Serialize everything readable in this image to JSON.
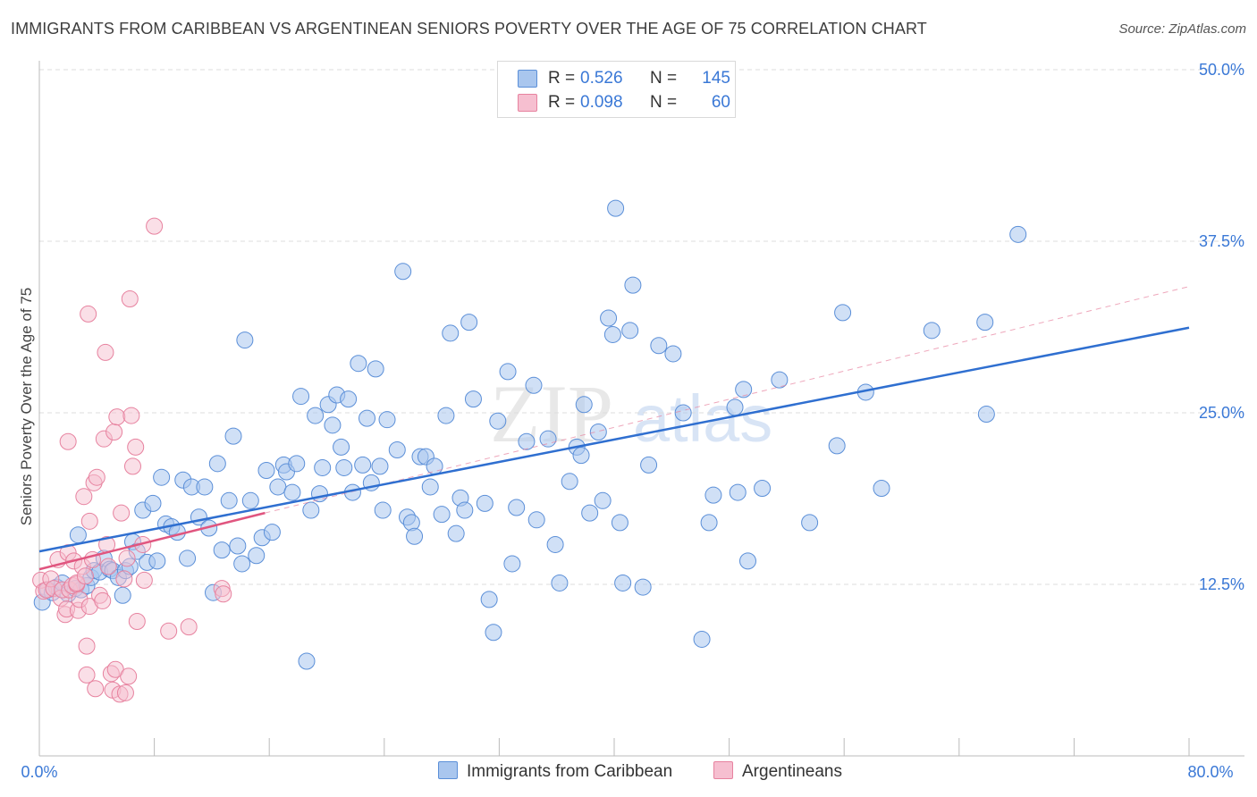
{
  "title": "IMMIGRANTS FROM CARIBBEAN VS ARGENTINEAN SENIORS POVERTY OVER THE AGE OF 75 CORRELATION CHART",
  "source": "Source: ZipAtlas.com",
  "watermark": {
    "zip": "ZIP",
    "atlas": "atlas"
  },
  "colors": {
    "blue_fill": "#a9c6ee",
    "blue_stroke": "#5b8fd8",
    "blue_line": "#2f6fd0",
    "pink_fill": "#f6bfd0",
    "pink_stroke": "#e7829f",
    "pink_line": "#e0557f",
    "axis_text": "#3a78d6",
    "grid": "#dddddd"
  },
  "legend": {
    "rows": [
      {
        "r_label": "R =",
        "r_value": "0.526",
        "n_label": "N =",
        "n_value": "145"
      },
      {
        "r_label": "R =",
        "r_value": "0.098",
        "n_label": "N =",
        "n_value": "60"
      }
    ]
  },
  "bottom_legend": {
    "series1": "Immigrants from Caribbean",
    "series2": "Argentineans"
  },
  "chart_data": {
    "type": "scatter",
    "title": "IMMIGRANTS FROM CARIBBEAN VS ARGENTINEAN SENIORS POVERTY OVER THE AGE OF 75 CORRELATION CHART",
    "xlabel": "",
    "ylabel": "Seniors Poverty Over the Age of 75",
    "xlim": [
      0,
      80
    ],
    "ylim": [
      0,
      50
    ],
    "x_tick_labels": [
      "0.0%",
      "80.0%"
    ],
    "y_ticks": [
      12.5,
      25.0,
      37.5,
      50.0
    ],
    "y_tick_labels": [
      "12.5%",
      "25.0%",
      "37.5%",
      "50.0%"
    ],
    "series": [
      {
        "name": "Immigrants from Caribbean",
        "R": 0.526,
        "N": 145,
        "trend": {
          "x": [
            0,
            80
          ],
          "y": [
            14.9,
            31.2
          ]
        },
        "points": [
          [
            0.2,
            11.2
          ],
          [
            0.6,
            12.1
          ],
          [
            0.9,
            11.9
          ],
          [
            1.2,
            12.3
          ],
          [
            1.6,
            12.6
          ],
          [
            2.0,
            11.8
          ],
          [
            2.5,
            12.2
          ],
          [
            2.7,
            16.1
          ],
          [
            2.9,
            12.1
          ],
          [
            3.3,
            12.4
          ],
          [
            3.6,
            13.0
          ],
          [
            3.8,
            13.5
          ],
          [
            4.2,
            13.4
          ],
          [
            4.5,
            14.4
          ],
          [
            4.9,
            13.6
          ],
          [
            5.1,
            13.5
          ],
          [
            5.5,
            13.0
          ],
          [
            5.8,
            11.7
          ],
          [
            6.0,
            13.5
          ],
          [
            6.3,
            13.8
          ],
          [
            6.5,
            15.6
          ],
          [
            6.8,
            14.9
          ],
          [
            7.2,
            17.9
          ],
          [
            7.5,
            14.1
          ],
          [
            7.9,
            18.4
          ],
          [
            8.2,
            14.2
          ],
          [
            8.5,
            20.3
          ],
          [
            8.8,
            16.9
          ],
          [
            9.2,
            16.7
          ],
          [
            9.6,
            16.3
          ],
          [
            10.0,
            20.1
          ],
          [
            10.3,
            14.4
          ],
          [
            10.6,
            19.6
          ],
          [
            11.1,
            17.4
          ],
          [
            11.5,
            19.6
          ],
          [
            11.8,
            16.6
          ],
          [
            12.1,
            11.9
          ],
          [
            12.4,
            21.3
          ],
          [
            12.7,
            15.0
          ],
          [
            13.2,
            18.6
          ],
          [
            13.5,
            23.3
          ],
          [
            13.8,
            15.3
          ],
          [
            14.1,
            14.0
          ],
          [
            14.3,
            30.3
          ],
          [
            14.7,
            18.6
          ],
          [
            15.1,
            14.6
          ],
          [
            15.5,
            15.9
          ],
          [
            15.8,
            20.8
          ],
          [
            16.2,
            16.3
          ],
          [
            16.6,
            19.6
          ],
          [
            17.0,
            21.2
          ],
          [
            17.2,
            20.7
          ],
          [
            17.6,
            19.2
          ],
          [
            17.9,
            21.3
          ],
          [
            18.2,
            26.2
          ],
          [
            18.6,
            6.9
          ],
          [
            18.9,
            17.9
          ],
          [
            19.2,
            24.8
          ],
          [
            19.5,
            19.1
          ],
          [
            19.7,
            21.0
          ],
          [
            20.1,
            25.6
          ],
          [
            20.4,
            24.1
          ],
          [
            20.7,
            26.3
          ],
          [
            21.0,
            22.5
          ],
          [
            21.2,
            21.0
          ],
          [
            21.5,
            26.0
          ],
          [
            21.8,
            19.2
          ],
          [
            22.2,
            28.6
          ],
          [
            22.5,
            21.2
          ],
          [
            22.8,
            24.6
          ],
          [
            23.1,
            19.9
          ],
          [
            23.4,
            28.2
          ],
          [
            23.7,
            21.1
          ],
          [
            23.9,
            17.9
          ],
          [
            24.2,
            24.5
          ],
          [
            24.9,
            22.3
          ],
          [
            25.3,
            35.3
          ],
          [
            25.6,
            17.4
          ],
          [
            25.9,
            17.0
          ],
          [
            26.1,
            16.0
          ],
          [
            26.5,
            21.8
          ],
          [
            26.9,
            21.8
          ],
          [
            27.2,
            19.6
          ],
          [
            27.5,
            21.1
          ],
          [
            28.0,
            17.6
          ],
          [
            28.3,
            24.8
          ],
          [
            28.6,
            30.8
          ],
          [
            29.0,
            16.2
          ],
          [
            29.3,
            18.8
          ],
          [
            29.6,
            17.9
          ],
          [
            29.9,
            31.6
          ],
          [
            30.2,
            26.0
          ],
          [
            31.0,
            18.4
          ],
          [
            31.3,
            11.4
          ],
          [
            31.6,
            9.0
          ],
          [
            31.9,
            24.4
          ],
          [
            32.6,
            28.0
          ],
          [
            32.9,
            14.0
          ],
          [
            33.2,
            18.1
          ],
          [
            33.9,
            22.9
          ],
          [
            34.4,
            27.0
          ],
          [
            34.6,
            17.2
          ],
          [
            35.4,
            23.1
          ],
          [
            35.9,
            15.4
          ],
          [
            36.2,
            12.6
          ],
          [
            36.9,
            20.0
          ],
          [
            37.4,
            22.5
          ],
          [
            37.7,
            21.9
          ],
          [
            37.9,
            25.6
          ],
          [
            38.3,
            17.7
          ],
          [
            38.9,
            23.6
          ],
          [
            39.2,
            18.6
          ],
          [
            39.6,
            31.9
          ],
          [
            39.9,
            30.7
          ],
          [
            40.1,
            39.9
          ],
          [
            40.4,
            17.0
          ],
          [
            40.6,
            12.6
          ],
          [
            41.1,
            31.0
          ],
          [
            41.3,
            34.3
          ],
          [
            42.0,
            12.3
          ],
          [
            42.4,
            21.2
          ],
          [
            43.1,
            29.9
          ],
          [
            44.1,
            29.3
          ],
          [
            44.8,
            25.0
          ],
          [
            46.1,
            8.5
          ],
          [
            46.6,
            17.0
          ],
          [
            46.9,
            19.0
          ],
          [
            48.4,
            25.4
          ],
          [
            48.6,
            19.2
          ],
          [
            49.0,
            26.7
          ],
          [
            49.3,
            14.2
          ],
          [
            50.3,
            19.5
          ],
          [
            51.5,
            27.4
          ],
          [
            53.6,
            17.0
          ],
          [
            55.5,
            22.6
          ],
          [
            55.9,
            32.3
          ],
          [
            57.5,
            26.5
          ],
          [
            58.6,
            19.5
          ],
          [
            62.1,
            31.0
          ],
          [
            65.8,
            31.6
          ],
          [
            65.9,
            24.9
          ],
          [
            68.1,
            38.0
          ]
        ]
      },
      {
        "name": "Argentineans",
        "R": 0.098,
        "N": 60,
        "trend": {
          "x": [
            0,
            15.7
          ],
          "y": [
            13.6,
            17.7
          ]
        },
        "trend_extension": {
          "x": [
            15.7,
            80
          ],
          "y": [
            17.7,
            34.2
          ],
          "style": "dashed"
        },
        "points": [
          [
            0.1,
            12.8
          ],
          [
            0.3,
            12.0
          ],
          [
            0.5,
            12.1
          ],
          [
            0.8,
            12.9
          ],
          [
            1.0,
            12.2
          ],
          [
            1.3,
            14.3
          ],
          [
            1.5,
            11.5
          ],
          [
            1.6,
            12.1
          ],
          [
            1.8,
            10.3
          ],
          [
            1.9,
            10.7
          ],
          [
            2.0,
            22.9
          ],
          [
            2.0,
            14.8
          ],
          [
            2.1,
            12.1
          ],
          [
            2.3,
            12.4
          ],
          [
            2.4,
            14.2
          ],
          [
            2.6,
            12.5
          ],
          [
            2.6,
            12.6
          ],
          [
            2.7,
            10.6
          ],
          [
            2.8,
            11.4
          ],
          [
            3.0,
            13.8
          ],
          [
            3.1,
            18.9
          ],
          [
            3.2,
            13.1
          ],
          [
            3.3,
            8.0
          ],
          [
            3.3,
            5.9
          ],
          [
            3.4,
            32.2
          ],
          [
            3.5,
            17.1
          ],
          [
            3.5,
            10.9
          ],
          [
            3.7,
            14.3
          ],
          [
            3.8,
            19.9
          ],
          [
            3.9,
            4.9
          ],
          [
            4.0,
            20.3
          ],
          [
            4.2,
            11.7
          ],
          [
            4.4,
            11.3
          ],
          [
            4.5,
            23.1
          ],
          [
            4.6,
            29.4
          ],
          [
            4.7,
            15.4
          ],
          [
            4.8,
            13.8
          ],
          [
            5.0,
            6.0
          ],
          [
            5.1,
            4.8
          ],
          [
            5.2,
            23.6
          ],
          [
            5.3,
            6.3
          ],
          [
            5.4,
            24.7
          ],
          [
            5.6,
            4.5
          ],
          [
            5.7,
            17.7
          ],
          [
            5.9,
            12.9
          ],
          [
            6.0,
            4.6
          ],
          [
            6.1,
            14.4
          ],
          [
            6.2,
            5.8
          ],
          [
            6.3,
            33.3
          ],
          [
            6.4,
            24.8
          ],
          [
            6.5,
            21.1
          ],
          [
            6.7,
            22.5
          ],
          [
            6.8,
            9.8
          ],
          [
            7.2,
            15.4
          ],
          [
            7.3,
            12.8
          ],
          [
            8.0,
            38.6
          ],
          [
            9.0,
            9.1
          ],
          [
            10.4,
            9.4
          ],
          [
            12.7,
            12.2
          ],
          [
            12.8,
            11.8
          ]
        ]
      }
    ]
  }
}
